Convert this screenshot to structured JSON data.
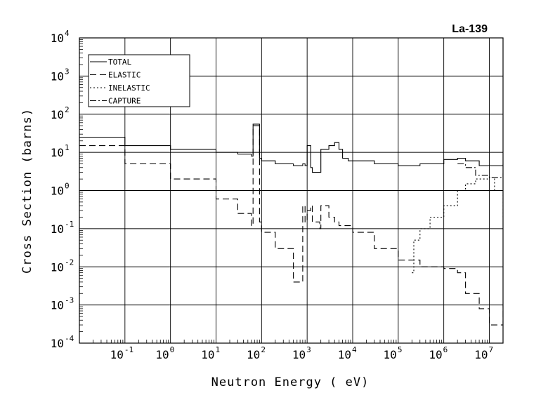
{
  "chart_data": {
    "type": "line",
    "title": "La-139",
    "xlabel": "Neutron Energy ( eV)",
    "ylabel": "Cross Section (barns)",
    "x_scale": "log",
    "y_scale": "log",
    "xlim": [
      0.01,
      20000000
    ],
    "ylim": [
      0.0001,
      10000
    ],
    "grid": true,
    "legend_position": "top-left",
    "x_ticks": [
      {
        "base": "10",
        "exp": "-1"
      },
      {
        "base": "10",
        "exp": "0"
      },
      {
        "base": "10",
        "exp": "1"
      },
      {
        "base": "10",
        "exp": "2"
      },
      {
        "base": "10",
        "exp": "3"
      },
      {
        "base": "10",
        "exp": "4"
      },
      {
        "base": "10",
        "exp": "5"
      },
      {
        "base": "10",
        "exp": "6"
      },
      {
        "base": "10",
        "exp": "7"
      }
    ],
    "y_ticks": [
      {
        "base": "10",
        "exp": "4"
      },
      {
        "base": "10",
        "exp": "3"
      },
      {
        "base": "10",
        "exp": "2"
      },
      {
        "base": "10",
        "exp": "1"
      },
      {
        "base": "10",
        "exp": "0"
      },
      {
        "base": "10",
        "exp": "-1"
      },
      {
        "base": "10",
        "exp": "-2"
      },
      {
        "base": "10",
        "exp": "-3"
      },
      {
        "base": "10",
        "exp": "-4"
      }
    ],
    "series": [
      {
        "name": "TOTAL",
        "style": "solid",
        "x": [
          0.01,
          0.1,
          1,
          10,
          30,
          60,
          65,
          85,
          90,
          100,
          200,
          500,
          800,
          900,
          1000,
          1200,
          1300,
          1900,
          2000,
          3000,
          4000,
          5000,
          6000,
          8000,
          10000,
          30000,
          100000,
          300000,
          1000000,
          2000000,
          3000000,
          6000000,
          10000000,
          20000000
        ],
        "y": [
          25,
          15,
          12,
          10,
          9,
          8,
          55,
          55,
          7,
          6,
          5,
          4.5,
          5,
          4.5,
          15,
          4,
          3,
          3,
          12,
          15,
          18,
          12,
          7,
          6,
          6,
          5,
          4.5,
          5,
          6.5,
          7,
          6,
          4.5,
          4.5,
          5
        ]
      },
      {
        "name": "ELASTIC",
        "style": "dashed",
        "x": [
          0.01,
          0.1,
          1,
          10,
          30,
          60,
          65,
          85,
          90,
          100,
          200,
          500,
          800,
          900,
          1000,
          1200,
          1300,
          1900,
          2000,
          3000,
          4000,
          5000,
          10000,
          30000,
          100000,
          300000,
          1000000,
          2000000,
          3000000,
          6000000,
          10000000,
          20000000
        ],
        "y": [
          15,
          5,
          2,
          0.6,
          0.25,
          0.12,
          50,
          50,
          0.15,
          0.08,
          0.03,
          0.004,
          0.4,
          0.15,
          0.3,
          0.4,
          0.15,
          0.1,
          0.4,
          0.2,
          0.15,
          0.12,
          0.08,
          0.03,
          0.015,
          0.01,
          0.009,
          0.007,
          0.002,
          0.0008,
          0.0003,
          0.001
        ]
      },
      {
        "name": "INELASTIC",
        "style": "dotted",
        "x": [
          200000,
          220000,
          300000,
          500000,
          1000000,
          2000000,
          3000000,
          5000000,
          10000000,
          13000000,
          20000000
        ],
        "y": [
          0.007,
          0.05,
          0.1,
          0.2,
          0.4,
          1,
          1.5,
          2,
          2.2,
          1,
          0.2
        ]
      },
      {
        "name": "CAPTURE",
        "style": "dashdot",
        "x": [
          2000000,
          3000000,
          5000000,
          10000000,
          20000000
        ],
        "y": [
          5,
          4,
          2.5,
          2.2,
          2.8
        ]
      }
    ]
  }
}
